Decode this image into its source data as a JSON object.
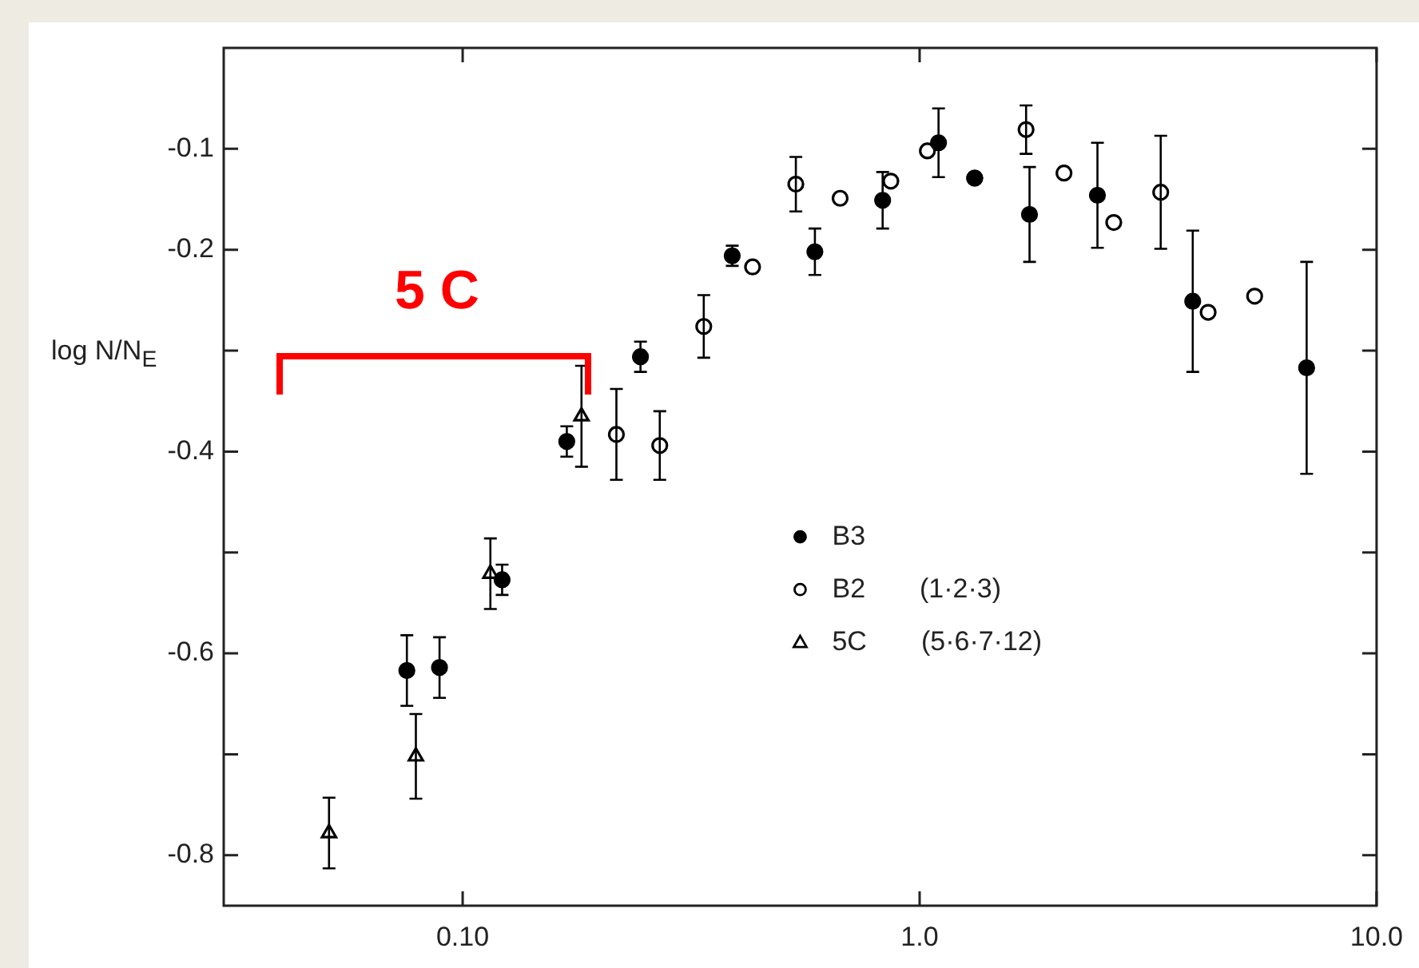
{
  "chart_data": {
    "type": "scatter",
    "ylabel": "log N/N$_{E}$",
    "log": "x",
    "xlim": [
      0.03,
      10
    ],
    "xticks": [
      {
        "value": 0.1,
        "label": "0.10"
      },
      {
        "value": 1,
        "label": "1.0"
      },
      {
        "value": 10,
        "label": "10.0"
      }
    ],
    "ylim": [
      -0.85,
      0
    ],
    "yticks": [
      {
        "value": -0.8,
        "label": "-0.8"
      },
      {
        "value": -0.7,
        "label": null
      },
      {
        "value": -0.6,
        "label": "-0.6"
      },
      {
        "value": -0.5,
        "label": null
      },
      {
        "value": -0.4,
        "label": "-0.4"
      },
      {
        "value": -0.3,
        "label": null
      },
      {
        "value": -0.2,
        "label": "-0.2"
      },
      {
        "value": -0.1,
        "label": "-0.1"
      }
    ],
    "grid": false,
    "legend": "center",
    "series": [
      {
        "name": "B3",
        "color": "#000000",
        "marker": "circle",
        "x": [
          0.0755,
          0.089,
          0.122,
          0.169,
          0.245,
          0.389,
          0.59,
          0.83,
          1.1,
          1.32,
          1.74,
          2.45,
          3.96,
          7.03
        ],
        "values": [
          -0.617,
          -0.614,
          -0.527,
          -0.39,
          -0.306,
          -0.206,
          -0.202,
          -0.151,
          -0.094,
          -0.129,
          -0.165,
          -0.146,
          -0.251,
          -0.317
        ],
        "errors": [
          0.035,
          0.03,
          0.015,
          0.015,
          0.015,
          0.01,
          0.023,
          0.028,
          0.034,
          null,
          0.047,
          0.052,
          0.07,
          0.105
        ]
      },
      {
        "name": "B2   (1·2·3)",
        "color": "#000000",
        "marker": "circle",
        "x": [
          0.217,
          0.27,
          0.337,
          0.431,
          0.536,
          0.67,
          0.865,
          1.04,
          1.32,
          1.71,
          2.07,
          2.66,
          3.37,
          4.28,
          5.41
        ],
        "values": [
          -0.383,
          -0.394,
          -0.276,
          -0.217,
          -0.135,
          -0.149,
          -0.132,
          -0.102,
          -0.129,
          -0.081,
          -0.124,
          -0.173,
          -0.143,
          -0.262,
          -0.246
        ],
        "errors": [
          0.045,
          0.034,
          0.031,
          null,
          0.027,
          null,
          null,
          null,
          null,
          0.024,
          null,
          null,
          0.056,
          null,
          null
        ]
      },
      {
        "name": "5C   (5·6·7·12)",
        "color": "#000000",
        "marker": "triangle",
        "x": [
          0.051,
          0.079,
          0.115,
          0.182
        ],
        "values": [
          -0.778,
          -0.702,
          -0.521,
          -0.365
        ],
        "errors": [
          0.035,
          0.042,
          0.035,
          0.05
        ]
      }
    ],
    "annotations": [
      "5 C"
    ]
  }
}
